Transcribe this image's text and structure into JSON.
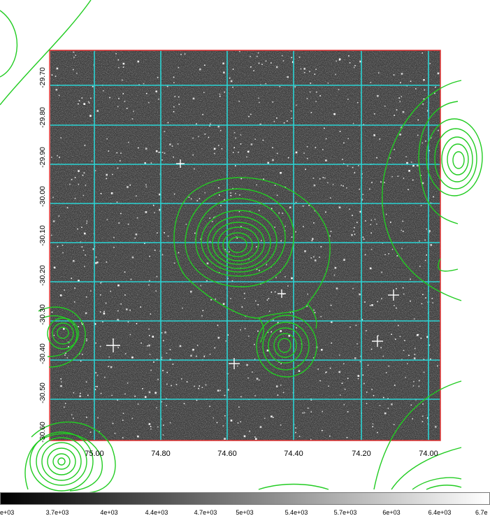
{
  "image": {
    "description_kind": "ds9-style sky image with WCS grid and contour overlay",
    "grid_color": "#2ad4d4",
    "contour_color": "#22cc22",
    "frame_color": "#e03030"
  },
  "axes": {
    "dec_labels": [
      "-29.70",
      "-29.80",
      "-29.90",
      "-30.00",
      "-30.10",
      "-30.20",
      "-30.30",
      "-30.40",
      "-30.50",
      "-30.60"
    ],
    "ra_labels": [
      "75.00",
      "74.80",
      "74.60",
      "74.40",
      "74.20",
      "74.00"
    ]
  },
  "colorbar": {
    "labels": [
      "e+03",
      "3.7e+03",
      "4e+03",
      "4.4e+03",
      "4.7e+03",
      "5e+03",
      "5.4e+03",
      "5.7e+03",
      "6e+03",
      "6.4e+03",
      "6.7e"
    ]
  }
}
